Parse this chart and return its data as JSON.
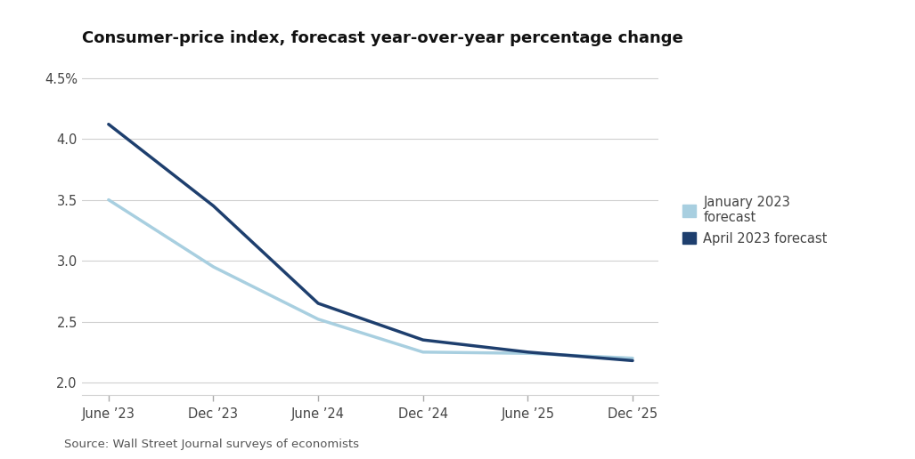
{
  "title": "Consumer-price index, forecast year-over-year percentage change",
  "source": "Source: Wall Street Journal surveys of economists",
  "x_labels": [
    "June ’23",
    "Dec ’23",
    "June ’24",
    "Dec ’24",
    "June ’25",
    "Dec ’25"
  ],
  "x_values": [
    0,
    1,
    2,
    3,
    4,
    5
  ],
  "january_2023": [
    3.5,
    2.95,
    2.52,
    2.25,
    2.24,
    2.2
  ],
  "april_2023": [
    4.12,
    3.45,
    2.65,
    2.35,
    2.25,
    2.18
  ],
  "jan_color": "#a8cfe0",
  "apr_color": "#1e3f6e",
  "ylim": [
    1.9,
    4.65
  ],
  "yticks": [
    2.0,
    2.5,
    3.0,
    3.5,
    4.0,
    4.5
  ],
  "ytick_labels": [
    "2.0",
    "2.5",
    "3.0",
    "3.5",
    "4.0",
    "4.5%"
  ],
  "legend_jan": "January 2023\nforecast",
  "legend_apr": "April 2023 forecast",
  "background_color": "#ffffff",
  "grid_color": "#d0d0d0",
  "line_width": 2.5,
  "title_fontsize": 13,
  "label_fontsize": 10.5,
  "source_fontsize": 9.5
}
